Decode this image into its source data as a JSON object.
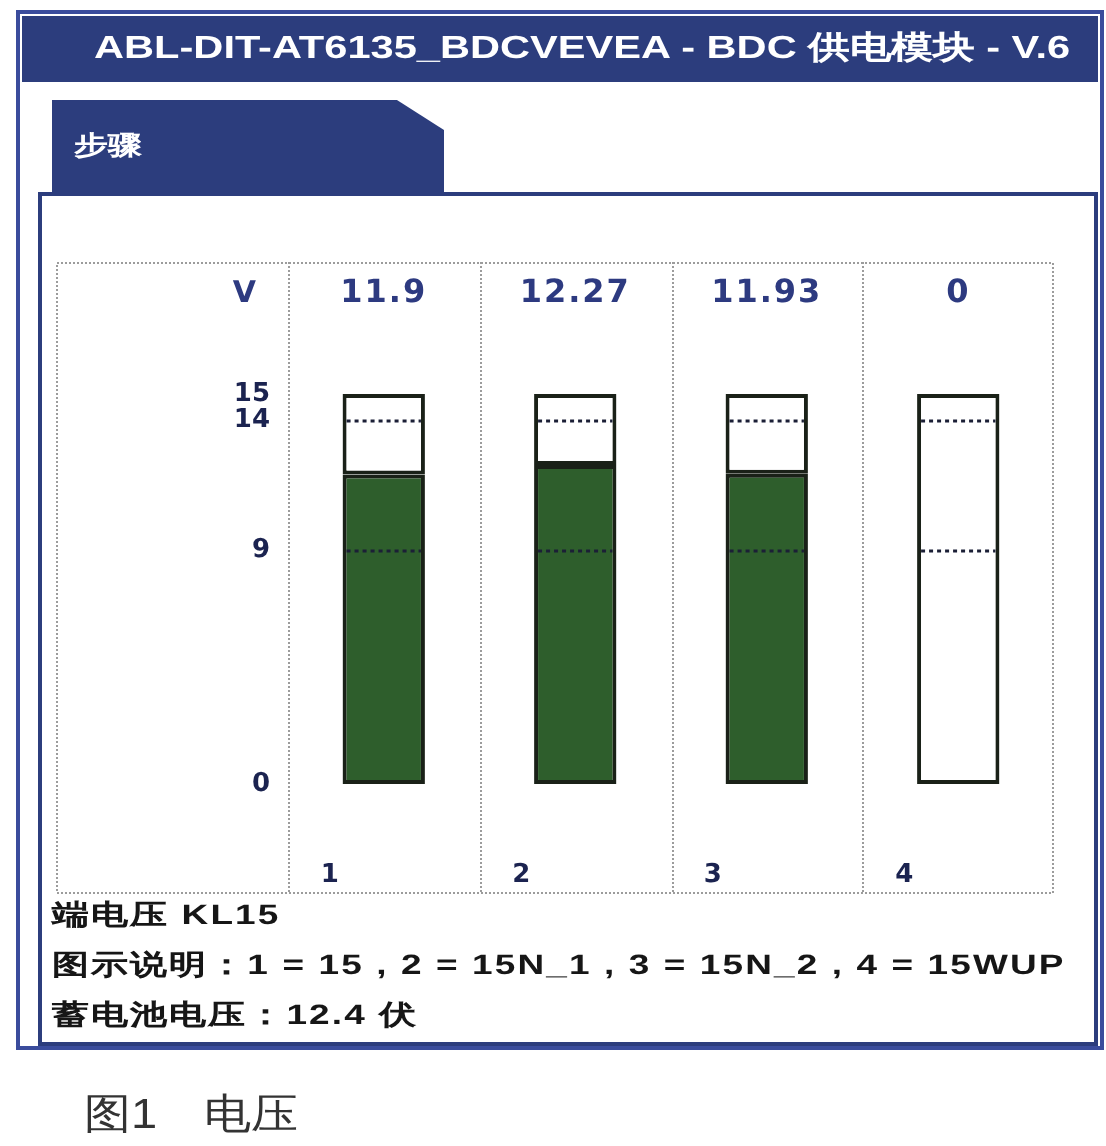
{
  "chart_data": {
    "type": "bar",
    "title": "ABL-DIT-AT6135_BDCVEVEA - BDC 供电模块 - V.6",
    "ylabel": "V",
    "categories": [
      "1",
      "2",
      "3",
      "4"
    ],
    "stacked": true,
    "series": [
      {
        "color": "#2e5e2c",
        "values": [
          11.9,
          12.27,
          11.93,
          0
        ],
        "value_labels": [
          "11.9",
          "12.27",
          "11.93",
          "0"
        ]
      },
      {
        "color": "#ffffff",
        "values": [
          3.1,
          2.73,
          3.07,
          15
        ]
      }
    ],
    "ylim": [
      0,
      15
    ],
    "yticks": [
      0,
      9,
      14,
      15
    ],
    "grid": "x",
    "ref_lines": [
      {
        "axis": "y",
        "value": 14,
        "color": "#1b1f36",
        "line_style": "dotted"
      },
      {
        "axis": "y",
        "value": 9,
        "color": "#1b1f36",
        "line_style": "dotted"
      }
    ],
    "annotations": [
      "步骤",
      "端电压 KL15",
      "图示说明：1 = 15 , 2 = 15N_1 , 3 = 15N_2 , 4 = 15WUP",
      "蓄电池电压：12.4 伏",
      "图1　电压"
    ]
  }
}
